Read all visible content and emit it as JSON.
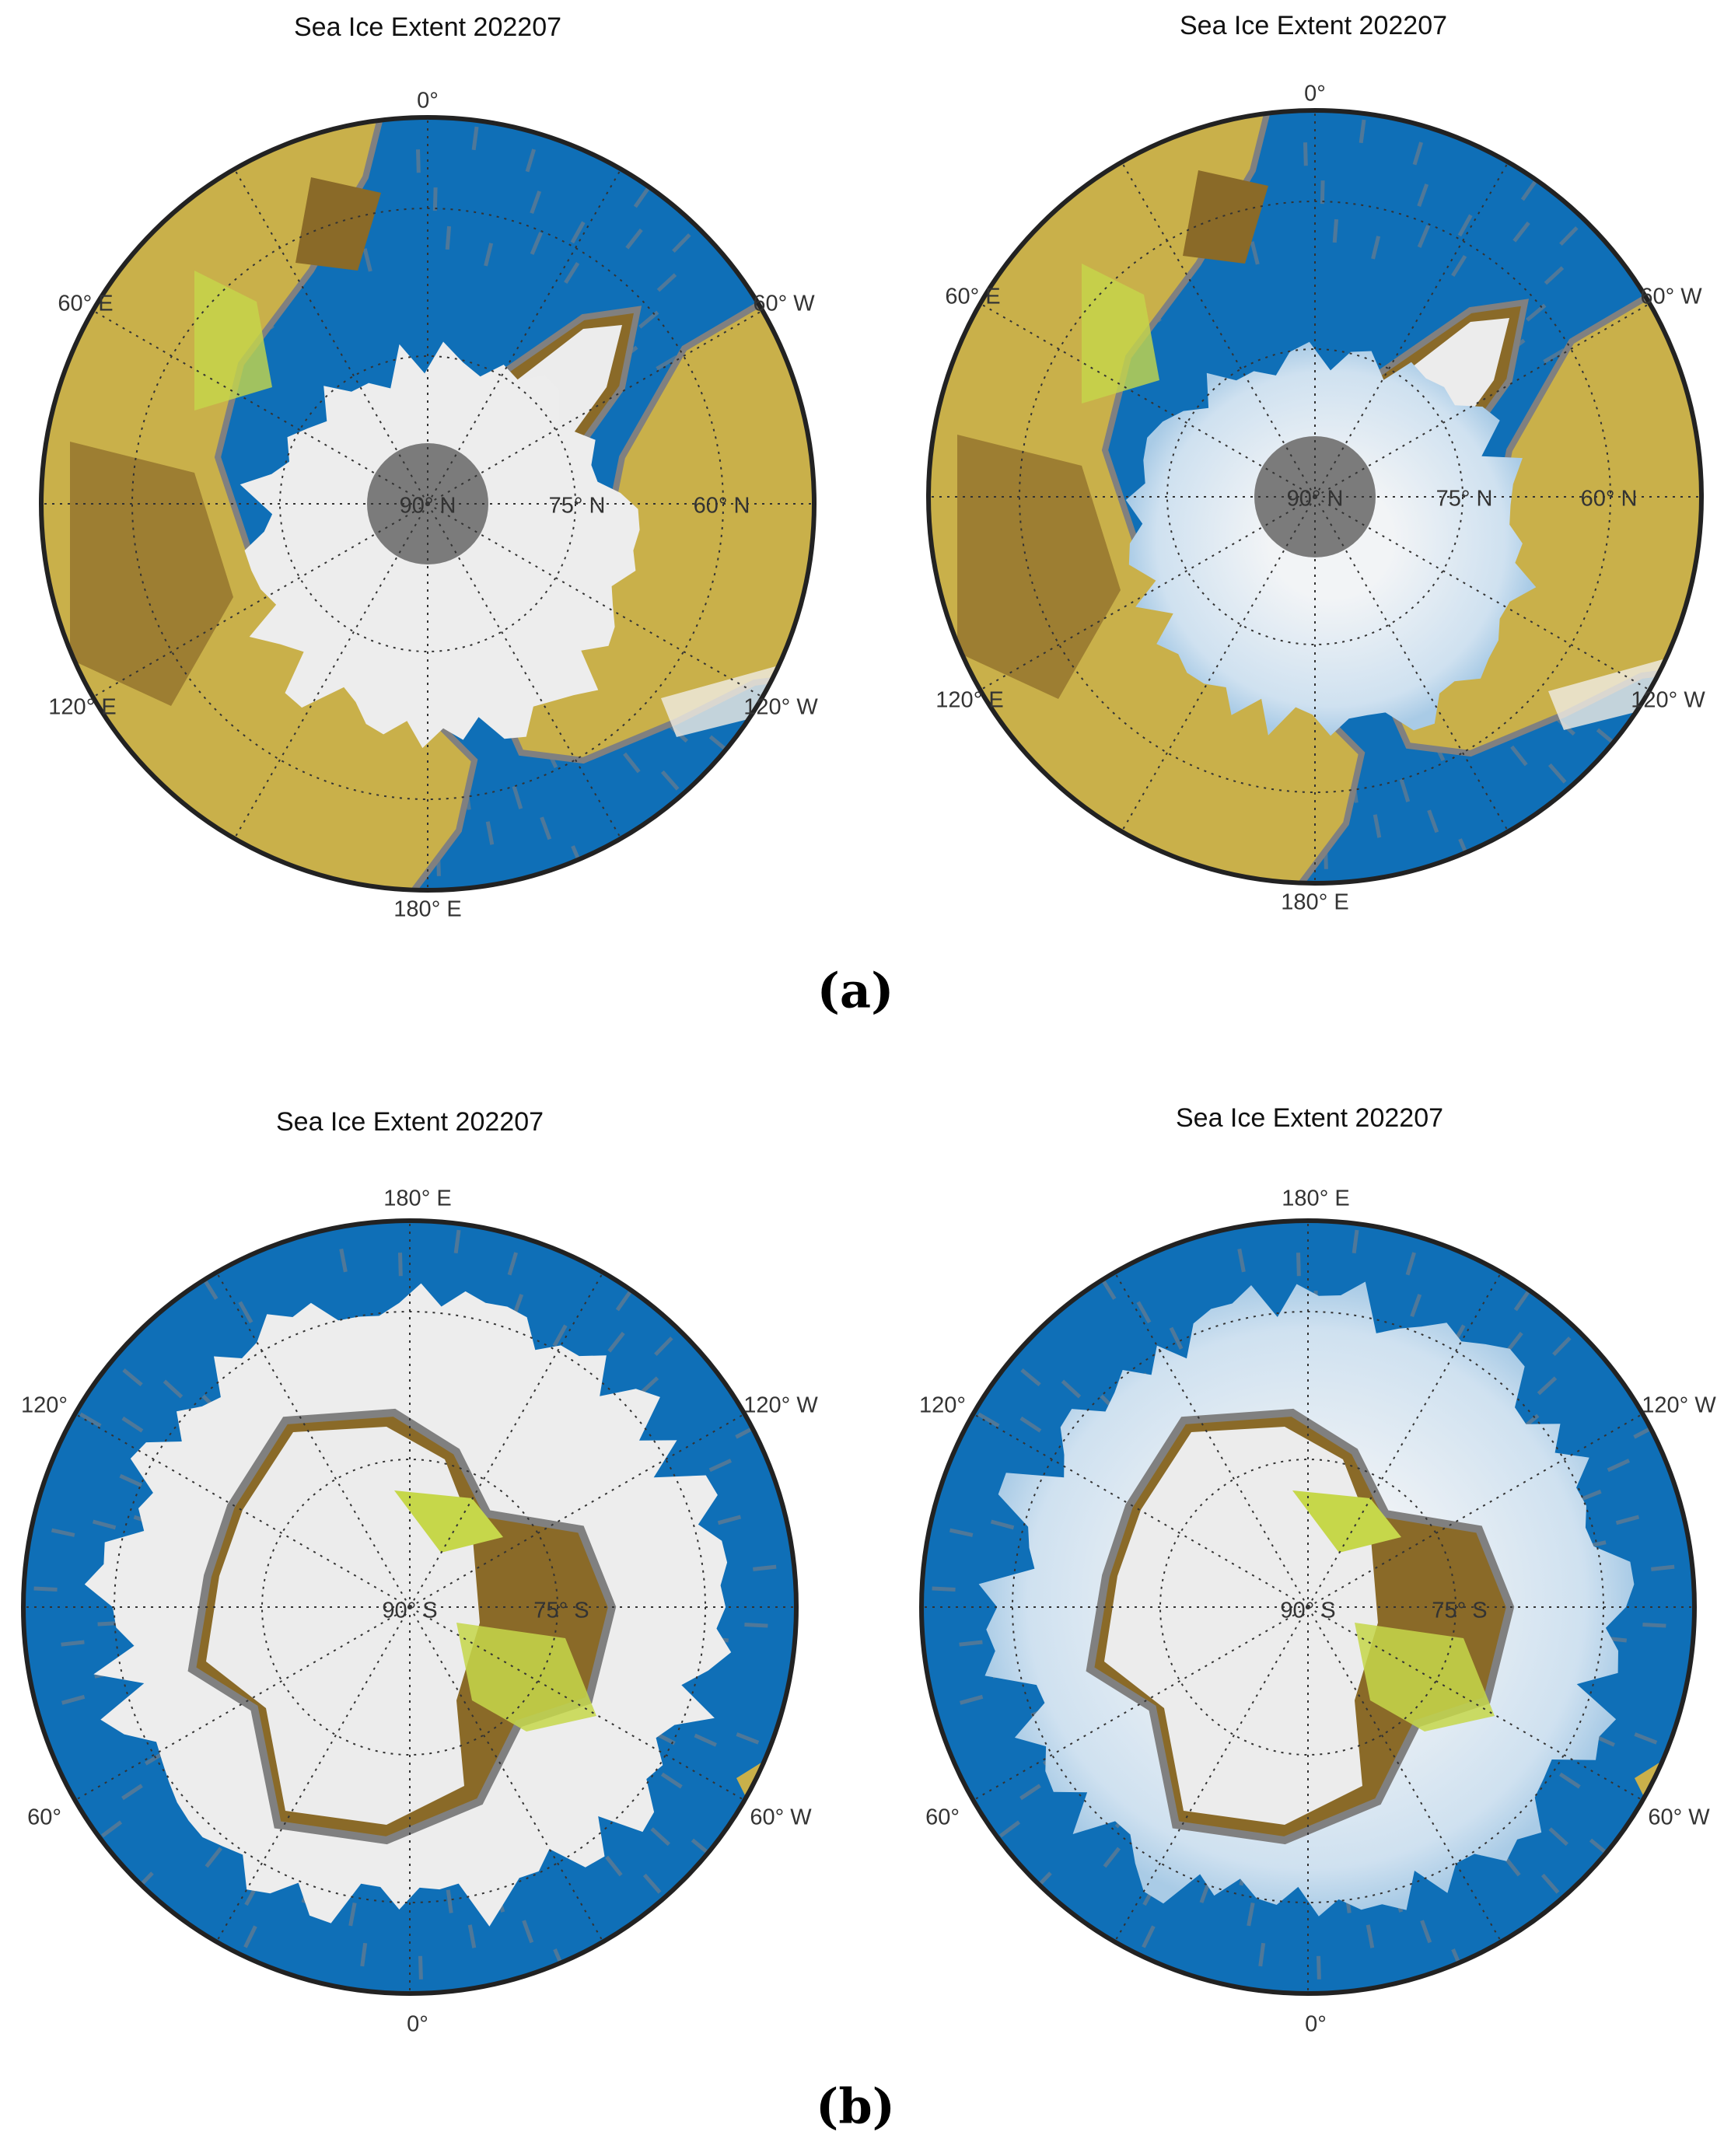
{
  "colors": {
    "ocean": "#0f6fb7",
    "land_low": "#c9b04a",
    "land_green": "#c6d74a",
    "land_high": "#8a6a28",
    "ice": "#ededed",
    "ice_blend": "#d7e6f2",
    "pole_hole": "#7b7b7b",
    "coast": "#808080"
  },
  "panels": [
    {
      "id": "arctic-binary",
      "title": "Sea Ice Extent 202207",
      "hemisphere": "north",
      "ice_style": "binary",
      "labels": [
        "0°",
        "60° E",
        "60° W",
        "90° N",
        "75° N",
        "60° N",
        "120° E",
        "120° W",
        "180° E"
      ]
    },
    {
      "id": "arctic-fractional",
      "title": "Sea Ice Extent 202207",
      "hemisphere": "north",
      "ice_style": "fractional",
      "labels": [
        "0°",
        "60° E",
        "60° W",
        "90° N",
        "75° N",
        "60° N",
        "120° E",
        "120° W",
        "180° E"
      ]
    },
    {
      "id": "antarctic-binary",
      "title": "Sea Ice Extent 202207",
      "hemisphere": "south",
      "ice_style": "binary",
      "labels": [
        "180° E",
        "120°",
        "120° W",
        "90° S",
        "75° S",
        "60°",
        "60° W",
        "0°"
      ]
    },
    {
      "id": "antarctic-fractional",
      "title": "Sea Ice Extent 202207",
      "hemisphere": "south",
      "ice_style": "fractional",
      "labels": [
        "180° E",
        "120°",
        "120° W",
        "90° S",
        "75° S",
        "60°",
        "60° W",
        "0°"
      ]
    }
  ],
  "captions": {
    "a": "(a)",
    "b": "(b)"
  }
}
